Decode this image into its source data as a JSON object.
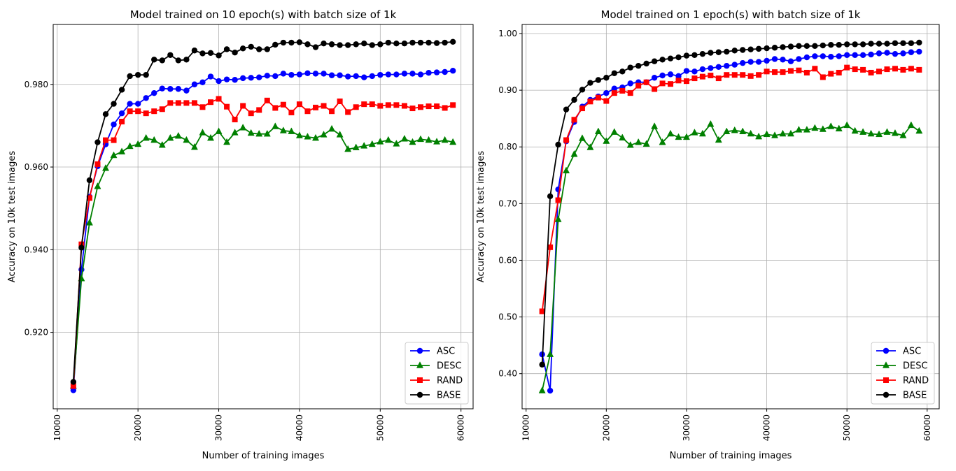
{
  "chart_data": [
    {
      "type": "line",
      "title": "Model trained on 10 epoch(s) with batch size of 1k",
      "xlabel": "Number of training images",
      "ylabel": "Accuracy on 10k test images",
      "xlim": [
        9500,
        61500
      ],
      "ylim": [
        0.9015,
        0.9945
      ],
      "xticks": [
        10000,
        20000,
        30000,
        40000,
        50000,
        60000
      ],
      "yticks": [
        0.92,
        0.94,
        0.96,
        0.98
      ],
      "grid": true,
      "legend": "bottom-right",
      "x": [
        12000,
        13000,
        14000,
        15000,
        16000,
        17000,
        18000,
        19000,
        20000,
        21000,
        22000,
        23000,
        24000,
        25000,
        26000,
        27000,
        28000,
        29000,
        30000,
        31000,
        32000,
        33000,
        34000,
        35000,
        36000,
        37000,
        38000,
        39000,
        40000,
        41000,
        42000,
        43000,
        44000,
        45000,
        46000,
        47000,
        48000,
        49000,
        50000,
        51000,
        52000,
        53000,
        54000,
        55000,
        56000,
        57000,
        58000,
        59000
      ],
      "series": [
        {
          "name": "ASC",
          "color": "#0000ff",
          "marker": "circle",
          "values": [
            0.906,
            0.9352,
            0.9528,
            0.9602,
            0.9655,
            0.9703,
            0.973,
            0.9753,
            0.9753,
            0.9767,
            0.9779,
            0.979,
            0.9789,
            0.9789,
            0.9785,
            0.98,
            0.9805,
            0.9819,
            0.9808,
            0.9812,
            0.9811,
            0.9815,
            0.9816,
            0.9817,
            0.9821,
            0.982,
            0.9826,
            0.9823,
            0.9824,
            0.9827,
            0.9826,
            0.9826,
            0.9822,
            0.9822,
            0.9819,
            0.982,
            0.9817,
            0.982,
            0.9823,
            0.9824,
            0.9824,
            0.9826,
            0.9826,
            0.9824,
            0.9828,
            0.9829,
            0.983,
            0.9833
          ]
        },
        {
          "name": "DESC",
          "color": "#008000",
          "marker": "triangle",
          "values": [
            0.907,
            0.933,
            0.9465,
            0.9553,
            0.9597,
            0.9628,
            0.9637,
            0.965,
            0.9655,
            0.967,
            0.9665,
            0.9653,
            0.967,
            0.9675,
            0.9665,
            0.9648,
            0.9683,
            0.967,
            0.9686,
            0.966,
            0.9683,
            0.9695,
            0.9682,
            0.968,
            0.968,
            0.9698,
            0.9688,
            0.9686,
            0.9676,
            0.9673,
            0.967,
            0.9678,
            0.9692,
            0.9678,
            0.9643,
            0.9647,
            0.9651,
            0.9655,
            0.9661,
            0.9665,
            0.9656,
            0.9668,
            0.966,
            0.9667,
            0.9665,
            0.9661,
            0.9665,
            0.966
          ]
        },
        {
          "name": "RAND",
          "color": "#ff0000",
          "marker": "square",
          "values": [
            0.907,
            0.9413,
            0.9525,
            0.9607,
            0.9665,
            0.9665,
            0.971,
            0.9735,
            0.9735,
            0.973,
            0.9735,
            0.974,
            0.9755,
            0.9755,
            0.9755,
            0.9755,
            0.9745,
            0.9757,
            0.9765,
            0.9746,
            0.9715,
            0.9748,
            0.973,
            0.9738,
            0.9761,
            0.9743,
            0.9751,
            0.9732,
            0.9752,
            0.9735,
            0.9744,
            0.9748,
            0.9735,
            0.9759,
            0.9733,
            0.9745,
            0.9752,
            0.9752,
            0.9748,
            0.975,
            0.975,
            0.9748,
            0.9742,
            0.9745,
            0.9747,
            0.9747,
            0.9743,
            0.975
          ]
        },
        {
          "name": "BASE",
          "color": "#000000",
          "marker": "circle",
          "values": [
            0.908,
            0.9405,
            0.9568,
            0.966,
            0.9728,
            0.9753,
            0.9787,
            0.982,
            0.9823,
            0.9823,
            0.986,
            0.9858,
            0.9871,
            0.9858,
            0.986,
            0.9882,
            0.9875,
            0.9876,
            0.987,
            0.9885,
            0.9877,
            0.9887,
            0.9891,
            0.9885,
            0.9885,
            0.9896,
            0.9901,
            0.9901,
            0.9902,
            0.9897,
            0.989,
            0.9899,
            0.9897,
            0.9895,
            0.9895,
            0.9897,
            0.9899,
            0.9895,
            0.9897,
            0.9901,
            0.9899,
            0.9899,
            0.9901,
            0.9901,
            0.9901,
            0.99,
            0.9901,
            0.9903
          ]
        }
      ]
    },
    {
      "type": "line",
      "title": "Model trained on 1 epoch(s) with batch size of 1k",
      "xlabel": "Number of training images",
      "ylabel": "Accuracy on 10k test images",
      "xlim": [
        9500,
        61500
      ],
      "ylim": [
        0.338,
        1.016
      ],
      "xticks": [
        10000,
        20000,
        30000,
        40000,
        50000,
        60000
      ],
      "yticks": [
        0.4,
        0.5,
        0.6,
        0.7,
        0.8,
        0.9,
        1.0
      ],
      "grid": true,
      "legend": "bottom-right",
      "x": [
        12000,
        13000,
        14000,
        15000,
        16000,
        17000,
        18000,
        19000,
        20000,
        21000,
        22000,
        23000,
        24000,
        25000,
        26000,
        27000,
        28000,
        29000,
        30000,
        31000,
        32000,
        33000,
        34000,
        35000,
        36000,
        37000,
        38000,
        39000,
        40000,
        41000,
        42000,
        43000,
        44000,
        45000,
        46000,
        47000,
        48000,
        49000,
        50000,
        51000,
        52000,
        53000,
        54000,
        55000,
        56000,
        57000,
        58000,
        59000
      ],
      "series": [
        {
          "name": "ASC",
          "color": "#0000ff",
          "marker": "circle",
          "values": [
            0.434,
            0.37,
            0.725,
            0.81,
            0.844,
            0.871,
            0.883,
            0.889,
            0.895,
            0.903,
            0.905,
            0.912,
            0.914,
            0.914,
            0.922,
            0.926,
            0.928,
            0.925,
            0.934,
            0.933,
            0.937,
            0.939,
            0.941,
            0.943,
            0.945,
            0.948,
            0.95,
            0.95,
            0.952,
            0.955,
            0.954,
            0.951,
            0.955,
            0.958,
            0.96,
            0.96,
            0.959,
            0.96,
            0.962,
            0.962,
            0.962,
            0.963,
            0.965,
            0.966,
            0.964,
            0.965,
            0.967,
            0.968
          ]
        },
        {
          "name": "DESC",
          "color": "#008000",
          "marker": "triangle",
          "values": [
            0.37,
            0.434,
            0.672,
            0.758,
            0.787,
            0.815,
            0.799,
            0.827,
            0.81,
            0.826,
            0.816,
            0.803,
            0.808,
            0.805,
            0.836,
            0.808,
            0.823,
            0.817,
            0.817,
            0.825,
            0.823,
            0.84,
            0.812,
            0.827,
            0.829,
            0.827,
            0.823,
            0.818,
            0.822,
            0.82,
            0.823,
            0.823,
            0.83,
            0.83,
            0.833,
            0.831,
            0.836,
            0.832,
            0.838,
            0.828,
            0.826,
            0.823,
            0.822,
            0.826,
            0.824,
            0.82,
            0.838,
            0.828
          ]
        },
        {
          "name": "RAND",
          "color": "#ff0000",
          "marker": "square",
          "values": [
            0.51,
            0.623,
            0.706,
            0.812,
            0.848,
            0.868,
            0.88,
            0.887,
            0.881,
            0.895,
            0.899,
            0.895,
            0.908,
            0.914,
            0.902,
            0.912,
            0.911,
            0.917,
            0.916,
            0.921,
            0.924,
            0.926,
            0.921,
            0.927,
            0.927,
            0.927,
            0.925,
            0.927,
            0.933,
            0.932,
            0.932,
            0.934,
            0.935,
            0.931,
            0.938,
            0.923,
            0.929,
            0.931,
            0.94,
            0.937,
            0.936,
            0.931,
            0.933,
            0.937,
            0.938,
            0.936,
            0.938,
            0.936
          ]
        },
        {
          "name": "BASE",
          "color": "#000000",
          "marker": "circle",
          "values": [
            0.416,
            0.713,
            0.804,
            0.866,
            0.883,
            0.901,
            0.913,
            0.918,
            0.922,
            0.93,
            0.933,
            0.94,
            0.943,
            0.947,
            0.951,
            0.954,
            0.956,
            0.958,
            0.961,
            0.962,
            0.964,
            0.966,
            0.967,
            0.968,
            0.97,
            0.971,
            0.972,
            0.973,
            0.974,
            0.975,
            0.976,
            0.977,
            0.978,
            0.978,
            0.978,
            0.979,
            0.98,
            0.98,
            0.981,
            0.981,
            0.981,
            0.982,
            0.982,
            0.982,
            0.983,
            0.983,
            0.983,
            0.984
          ]
        }
      ]
    }
  ]
}
